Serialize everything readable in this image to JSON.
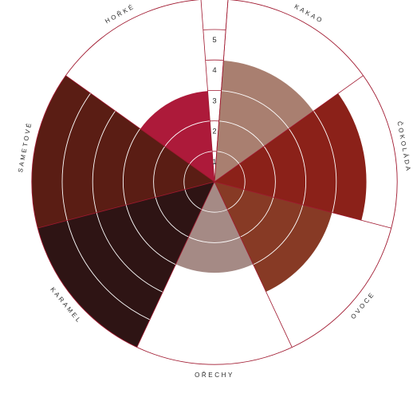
{
  "chart_data": {
    "type": "polar_area",
    "categories": [
      "KAKAO",
      "ČOKOLÁDA",
      "OVOCE",
      "OŘECHY",
      "KARAMEL",
      "SAMETOVÉ",
      "HOŘKÉ"
    ],
    "values": [
      4,
      5,
      4,
      3,
      6,
      6,
      3
    ],
    "colors": [
      "#a97f70",
      "#8b2119",
      "#873a25",
      "#a58a85",
      "#2e1414",
      "#5a1d14",
      "#ad1a3a"
    ],
    "scale_ticks": [
      "1",
      "2",
      "3",
      "4",
      "5"
    ],
    "rlim": [
      0,
      6
    ],
    "grid": true,
    "accent_color": "#a0182f",
    "gridline_color": "#ffffff",
    "empty_slice": true
  }
}
